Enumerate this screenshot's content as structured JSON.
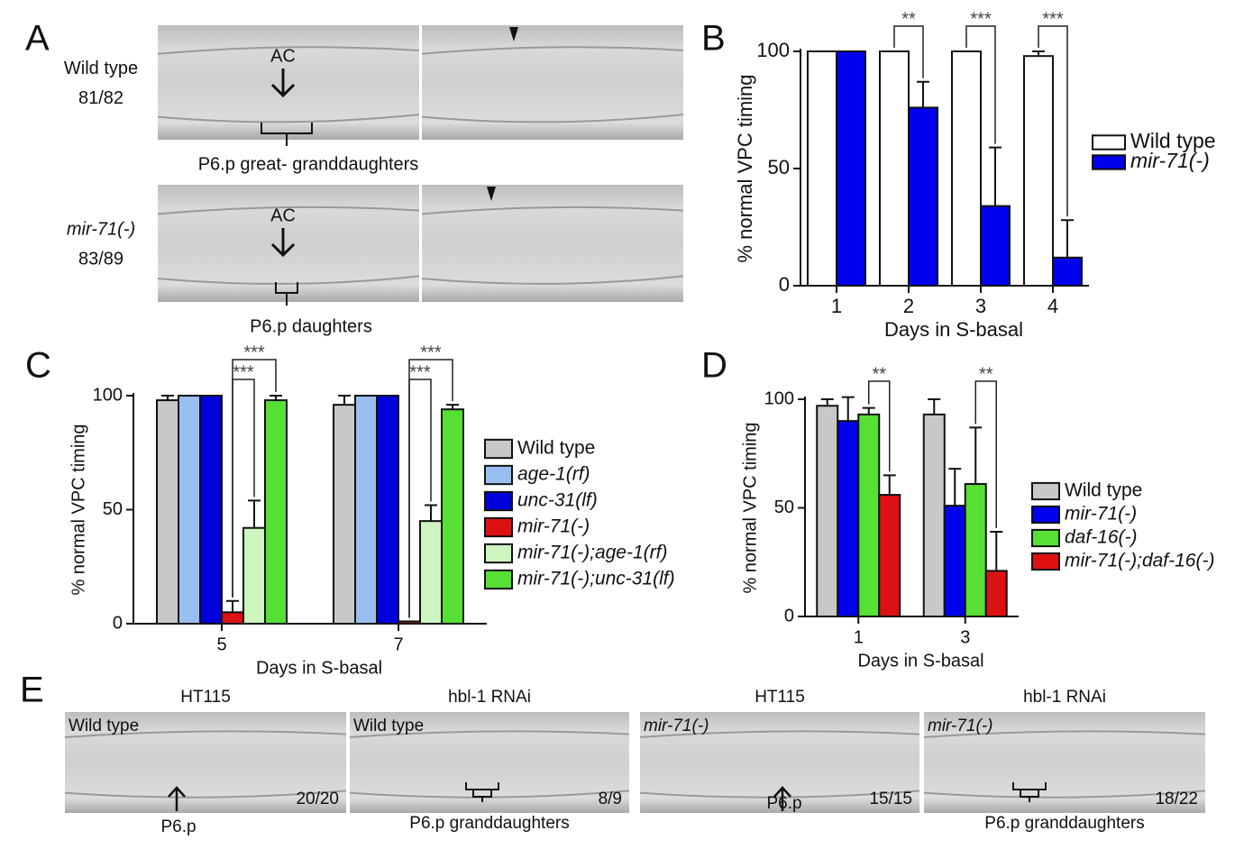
{
  "panel_labels": [
    "A",
    "B",
    "C",
    "D",
    "E"
  ],
  "panel_a": {
    "rows": [
      {
        "genotype": "Wild type",
        "count": "81/82",
        "marker": "AC",
        "caption": "P6.p great- granddaughters"
      },
      {
        "genotype": "mir-71(-)",
        "count": "83/89",
        "marker": "AC",
        "caption": "P6.p daughters"
      }
    ]
  },
  "chart_data": [
    {
      "type": "bar",
      "xlabel": "Days in S-basal",
      "ylabel": "% normal VPC timing",
      "categories": [
        "1",
        "2",
        "3",
        "4"
      ],
      "ylim": [
        0,
        100
      ],
      "yticks": [
        0,
        50,
        100
      ],
      "series": [
        {
          "name": "Wild type",
          "color": "#ffffff",
          "values": [
            100,
            100,
            100,
            98
          ],
          "errors": [
            0,
            0,
            0,
            2
          ]
        },
        {
          "name": "mir-71(-)",
          "color": "#0000ee",
          "values": [
            100,
            76,
            34,
            12
          ],
          "errors": [
            0,
            11,
            25,
            16
          ]
        }
      ],
      "annotations": [
        {
          "category": "2",
          "text": "**"
        },
        {
          "category": "3",
          "text": "***"
        },
        {
          "category": "4",
          "text": "***"
        }
      ],
      "legend": "right"
    },
    {
      "type": "bar",
      "xlabel": "Days in S-basal",
      "ylabel": "% normal VPC timing",
      "categories": [
        "5",
        "7"
      ],
      "ylim": [
        0,
        100
      ],
      "yticks": [
        0,
        50,
        100
      ],
      "series": [
        {
          "name": "Wild type",
          "color": "#c8c8c8",
          "values": [
            98,
            96
          ],
          "errors": [
            2,
            4
          ]
        },
        {
          "name": "age-1(rf)",
          "color": "#99bff0",
          "values": [
            100,
            100
          ],
          "errors": [
            0,
            0
          ]
        },
        {
          "name": "unc-31(lf)",
          "color": "#0000dd",
          "values": [
            100,
            100
          ],
          "errors": [
            0,
            0
          ]
        },
        {
          "name": "mir-71(-)",
          "color": "#dd1111",
          "values": [
            5,
            1
          ],
          "errors": [
            5,
            0
          ]
        },
        {
          "name": "mir-71(-);age-1(rf)",
          "color": "#ccf5c0",
          "values": [
            42,
            45
          ],
          "errors": [
            12,
            7
          ]
        },
        {
          "name": "mir-71(-);unc-31(lf)",
          "color": "#55e033",
          "values": [
            98,
            94
          ],
          "errors": [
            2,
            2
          ]
        }
      ],
      "annotations": [
        {
          "category": "5",
          "text": "***"
        },
        {
          "category": "5",
          "text": "***"
        },
        {
          "category": "7",
          "text": "***"
        },
        {
          "category": "7",
          "text": "***"
        }
      ],
      "legend": "right"
    },
    {
      "type": "bar",
      "xlabel": "Days in S-basal",
      "ylabel": "% normal VPC timing",
      "categories": [
        "1",
        "3"
      ],
      "ylim": [
        0,
        100
      ],
      "yticks": [
        0,
        50,
        100
      ],
      "series": [
        {
          "name": "Wild type",
          "color": "#c8c8c8",
          "values": [
            97,
            93
          ],
          "errors": [
            3,
            7
          ]
        },
        {
          "name": "mir-71(-)",
          "color": "#0000ee",
          "values": [
            90,
            51
          ],
          "errors": [
            11,
            17
          ]
        },
        {
          "name": "daf-16(-)",
          "color": "#55e033",
          "values": [
            93,
            61
          ],
          "errors": [
            3,
            26
          ]
        },
        {
          "name": "mir-71(-);daf-16(-)",
          "color": "#dd1111",
          "values": [
            56,
            21
          ],
          "errors": [
            9,
            18
          ]
        }
      ],
      "annotations": [
        {
          "category": "1",
          "text": "**"
        },
        {
          "category": "3",
          "text": "**"
        }
      ],
      "legend": "right"
    }
  ],
  "panel_e": {
    "images": [
      {
        "title": "HT115",
        "genotype": "Wild type",
        "count": "20/20",
        "caption": "P6.p"
      },
      {
        "title": "hbl-1 RNAi",
        "genotype": "Wild type",
        "count": "8/9",
        "caption": "P6.p granddaughters"
      },
      {
        "title": "HT115",
        "genotype": "mir-71(-)",
        "count": "15/15",
        "caption": "P6.p"
      },
      {
        "title": "hbl-1 RNAi",
        "genotype": "mir-71(-)",
        "count": "18/22",
        "caption": "P6.p granddaughters"
      }
    ]
  }
}
